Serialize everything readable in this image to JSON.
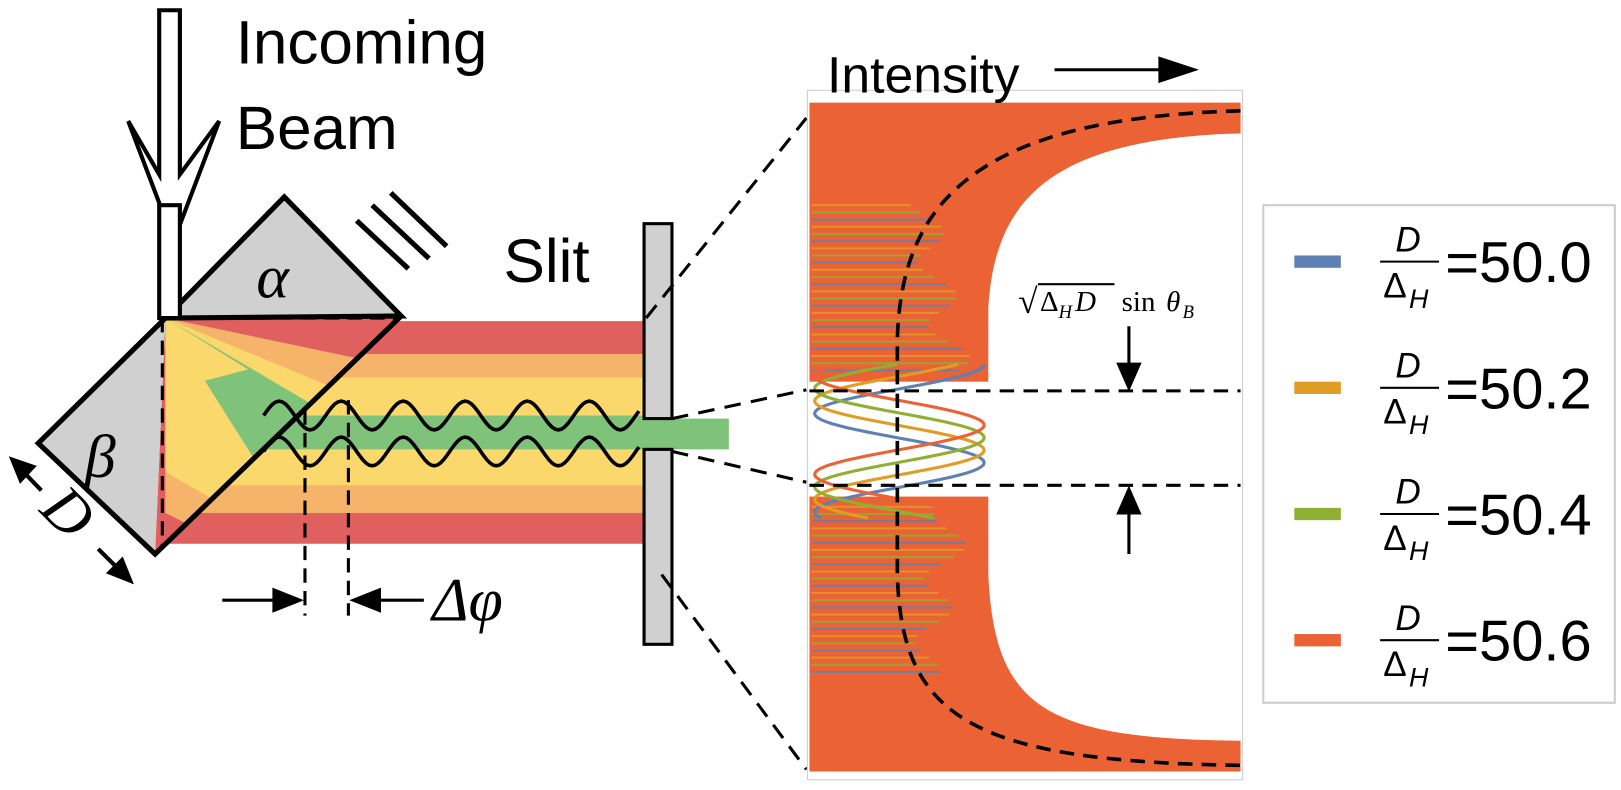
{
  "labels": {
    "incoming": "Incoming",
    "beam": "Beam",
    "alpha": "α",
    "beta": "β",
    "d": "D",
    "slit": "Slit",
    "delta_phi": "Δφ",
    "intensity": "Intensity"
  },
  "formula": {
    "sqrt_symbol": "√",
    "delta": "Δ",
    "delta_sub": "H",
    "d": "D",
    "sin": "sin",
    "theta": "θ",
    "theta_sub": "B"
  },
  "legend": [
    {
      "numerator": "D",
      "denominator": "Δ",
      "subscript": "H",
      "value": "=50.0",
      "color": "#5e81b5"
    },
    {
      "numerator": "D",
      "denominator": "Δ",
      "subscript": "H",
      "value": "=50.2",
      "color": "#e19c24"
    },
    {
      "numerator": "D",
      "denominator": "Δ",
      "subscript": "H",
      "value": "=50.4",
      "color": "#8fb032"
    },
    {
      "numerator": "D",
      "denominator": "Δ",
      "subscript": "H",
      "value": "=50.6",
      "color": "#eb6235"
    }
  ]
}
